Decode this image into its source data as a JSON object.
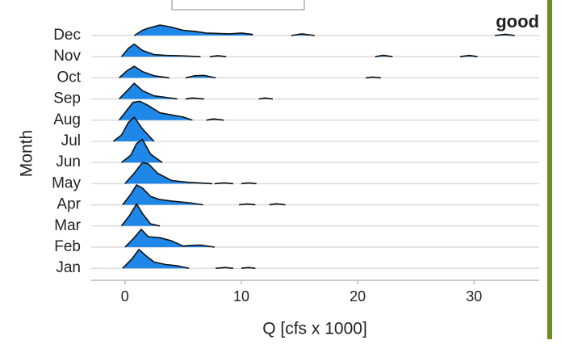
{
  "chart_data": {
    "type": "ridgeline",
    "categories": [
      "Dec",
      "Nov",
      "Oct",
      "Sep",
      "Aug",
      "Jul",
      "Jun",
      "May",
      "Apr",
      "Mar",
      "Feb",
      "Jan"
    ],
    "series": [
      {
        "name": "Dec",
        "x": [
          0.8,
          1.5,
          2,
          3,
          4,
          5,
          6,
          7,
          8,
          9,
          10,
          11,
          null,
          14.3,
          15.2,
          16.3,
          null,
          31.8,
          32.7,
          33.5
        ],
        "values": [
          0,
          0.25,
          0.35,
          0.5,
          0.4,
          0.25,
          0.2,
          0.12,
          0.1,
          0.08,
          0.12,
          0.05,
          null,
          0,
          0.08,
          0,
          null,
          0,
          0.06,
          0
        ]
      },
      {
        "name": "Nov",
        "x": [
          -0.3,
          0.3,
          0.8,
          1.5,
          2.5,
          3.5,
          5,
          6.5,
          null,
          7.3,
          8,
          8.7,
          null,
          21.5,
          22.2,
          23,
          null,
          28.8,
          29.6,
          30.3
        ],
        "values": [
          0,
          0.4,
          0.6,
          0.3,
          0.1,
          0.06,
          0.04,
          0,
          null,
          0,
          0.05,
          0,
          null,
          0,
          0.07,
          0,
          null,
          0,
          0.06,
          0
        ]
      },
      {
        "name": "Oct",
        "x": [
          -0.5,
          0.2,
          0.8,
          1.5,
          2.5,
          3.8,
          null,
          5.2,
          6,
          6.8,
          7.8,
          null,
          20.7,
          21.3,
          22
        ],
        "values": [
          0,
          0.35,
          0.55,
          0.3,
          0.1,
          0,
          null,
          0,
          0.1,
          0.12,
          0,
          null,
          0,
          0.04,
          0
        ]
      },
      {
        "name": "Sep",
        "x": [
          -0.5,
          0.2,
          0.8,
          1.5,
          2.5,
          3.5,
          4.5,
          null,
          5.2,
          5.8,
          6.8,
          null,
          11.5,
          12,
          12.7
        ],
        "values": [
          0,
          0.4,
          0.75,
          0.4,
          0.15,
          0.08,
          0,
          null,
          0,
          0.05,
          0,
          null,
          0,
          0.05,
          0
        ]
      },
      {
        "name": "Aug",
        "x": [
          -0.5,
          0.2,
          0.7,
          1.3,
          2,
          3,
          4,
          5,
          5.8,
          null,
          7,
          7.6,
          8.5
        ],
        "values": [
          0,
          0.5,
          0.85,
          0.9,
          0.7,
          0.35,
          0.25,
          0.15,
          0,
          null,
          0,
          0.06,
          0
        ]
      },
      {
        "name": "Jul",
        "x": [
          -1,
          -0.3,
          0.3,
          0.8,
          1.5,
          2.5
        ],
        "values": [
          0,
          0.3,
          0.9,
          1.15,
          0.6,
          0
        ]
      },
      {
        "name": "Jun",
        "x": [
          -0.3,
          0.5,
          1,
          1.5,
          2.2,
          3.2
        ],
        "values": [
          0,
          0.35,
          0.9,
          1.1,
          0.4,
          0
        ]
      },
      {
        "name": "May",
        "x": [
          0,
          0.8,
          1.5,
          2,
          2.8,
          4,
          5.5,
          7.5,
          null,
          7.7,
          8.5,
          9.3,
          null,
          10,
          10.6,
          11.3
        ],
        "values": [
          0,
          0.5,
          1.0,
          0.95,
          0.5,
          0.15,
          0.06,
          0,
          null,
          0,
          0.04,
          0,
          null,
          0,
          0.04,
          0
        ]
      },
      {
        "name": "Apr",
        "x": [
          -0.2,
          0.5,
          1,
          1.5,
          2.2,
          3,
          4,
          5.5,
          6.7,
          null,
          9.8,
          10.5,
          11.2,
          null,
          12.4,
          13,
          13.8
        ],
        "values": [
          0,
          0.5,
          0.95,
          0.8,
          0.4,
          0.25,
          0.18,
          0.1,
          0,
          null,
          0,
          0.04,
          0,
          null,
          0,
          0.05,
          0
        ]
      },
      {
        "name": "Mar",
        "x": [
          -0.3,
          0.4,
          1,
          1.5,
          2.2,
          3
        ],
        "values": [
          0,
          0.5,
          1.05,
          0.6,
          0.1,
          0
        ]
      },
      {
        "name": "Feb",
        "x": [
          0,
          0.8,
          1.4,
          2,
          3,
          4,
          5,
          5.5,
          6.5,
          7.7
        ],
        "values": [
          0,
          0.45,
          0.85,
          0.5,
          0.45,
          0.3,
          0.05,
          0.08,
          0.1,
          0
        ]
      },
      {
        "name": "Jan",
        "x": [
          -0.2,
          0.6,
          1.2,
          1.8,
          2.5,
          3.5,
          4.5,
          5.5,
          null,
          7.8,
          8.6,
          9.3,
          null,
          10,
          10.6,
          11.2
        ],
        "values": [
          0,
          0.45,
          0.9,
          0.6,
          0.3,
          0.18,
          0.12,
          0,
          null,
          0,
          0.04,
          0,
          null,
          0,
          0.04,
          0
        ]
      }
    ],
    "color": "#1f87e8",
    "xlim": [
      -2.9,
      35.6
    ],
    "xticks": [
      0,
      10,
      20,
      30
    ],
    "xlabel": "Q [cfs x 1000]",
    "ylabel": "Month",
    "grid": true,
    "annotation": {
      "text": "good",
      "color": "#6b8e23"
    }
  }
}
